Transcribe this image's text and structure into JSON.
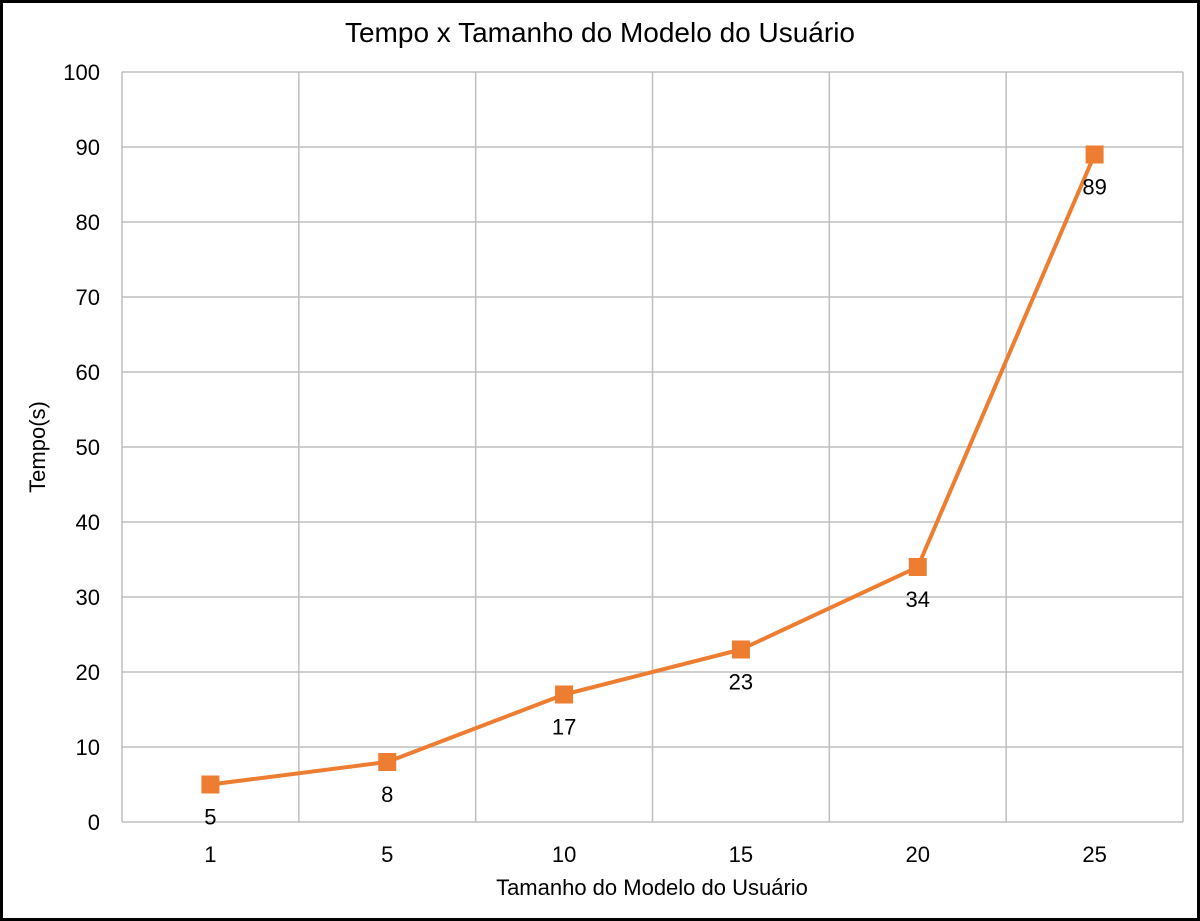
{
  "chart_data": {
    "type": "line",
    "title": "Tempo x Tamanho do Modelo do Usuário",
    "xlabel": "Tamanho do Modelo do Usuário",
    "ylabel": "Tempo(s)",
    "categories": [
      "1",
      "5",
      "10",
      "15",
      "20",
      "25"
    ],
    "series": [
      {
        "values": [
          5,
          8,
          17,
          23,
          34,
          89
        ],
        "color": "#ED7D31",
        "marker": "square",
        "data_labels": [
          "5",
          "8",
          "17",
          "23",
          "34",
          "89"
        ]
      }
    ],
    "ylim": [
      0,
      100
    ],
    "yticks": [
      0,
      10,
      20,
      30,
      40,
      50,
      60,
      70,
      80,
      90,
      100
    ],
    "grid": true,
    "legend": "none"
  }
}
